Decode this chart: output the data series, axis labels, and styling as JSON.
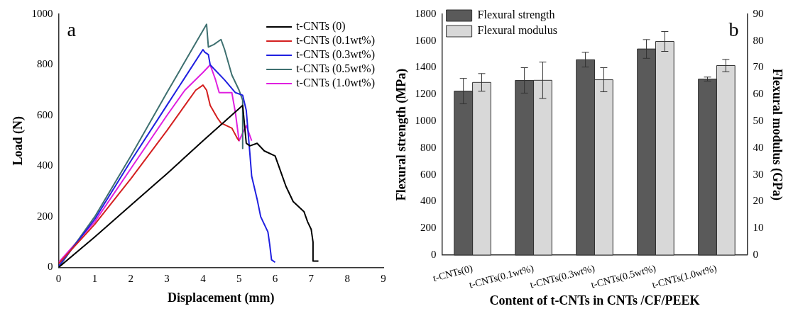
{
  "chart_data": [
    {
      "type": "line",
      "xlabel": "Displacement (mm)",
      "ylabel": "Load (N)",
      "xlim": [
        0,
        9
      ],
      "xticks": [
        0,
        1,
        2,
        3,
        4,
        5,
        6,
        7,
        8,
        9
      ],
      "ylim": [
        0,
        1000
      ],
      "yticks": [
        0,
        200,
        400,
        600,
        800,
        1000
      ],
      "legend": "top right",
      "grid": false,
      "annotations": [
        "a"
      ],
      "series": [
        {
          "name": "t-CNTs (0)",
          "color": "#000000",
          "x": [
            0,
            1,
            2,
            3,
            4,
            5.1,
            5.2,
            5.3,
            5.5,
            5.7,
            6.0,
            6.1,
            6.3,
            6.5,
            6.8,
            6.9,
            7.0,
            7.05,
            7.05,
            7.2
          ],
          "values": [
            0,
            120,
            245,
            370,
            500,
            640,
            490,
            480,
            490,
            460,
            440,
            400,
            320,
            260,
            220,
            180,
            150,
            100,
            25,
            25
          ]
        },
        {
          "name": "t-CNTs (0.1wt%)",
          "color": "#d42020",
          "x": [
            0,
            1,
            2,
            3,
            3.5,
            3.8,
            4.0,
            4.1,
            4.2,
            4.4,
            4.5,
            4.8,
            4.95,
            5.0
          ],
          "values": [
            15,
            170,
            350,
            540,
            640,
            700,
            720,
            700,
            640,
            590,
            570,
            550,
            510,
            500
          ]
        },
        {
          "name": "t-CNTs (0.3wt%)",
          "color": "#2020e0",
          "x": [
            0,
            1,
            2,
            3,
            3.5,
            4.0,
            4.05,
            4.15,
            4.2,
            4.6,
            4.9,
            5.1,
            5.2,
            5.3,
            5.35,
            5.5,
            5.6,
            5.8,
            5.85,
            5.9,
            6.0
          ],
          "values": [
            5,
            190,
            420,
            640,
            750,
            860,
            850,
            840,
            800,
            740,
            690,
            680,
            620,
            450,
            360,
            270,
            200,
            140,
            90,
            30,
            20
          ]
        },
        {
          "name": "t-CNTs (0.5wt%)",
          "color": "#3e7070",
          "x": [
            0,
            1,
            2,
            3,
            4.1,
            4.15,
            4.3,
            4.5,
            4.6,
            4.8,
            5.0,
            5.1,
            5.1
          ],
          "values": [
            0,
            200,
            440,
            690,
            960,
            870,
            880,
            900,
            860,
            760,
            700,
            660,
            470
          ]
        },
        {
          "name": "t-CNTs (1.0wt%)",
          "color": "#e020e0",
          "x": [
            0,
            1,
            2,
            3,
            3.5,
            4.0,
            4.2,
            4.35,
            4.45,
            4.8,
            4.9,
            5.0,
            5.2,
            5.35
          ],
          "values": [
            20,
            180,
            390,
            600,
            700,
            770,
            800,
            740,
            690,
            690,
            610,
            500,
            560,
            500
          ]
        }
      ]
    },
    {
      "type": "bar",
      "xlabel": "Content of t-CNTs in CNTs /CF/PEEK",
      "ylabel": "Flexural strength (MPa)",
      "y2label": "Flexural modulus (GPa)",
      "ylim": [
        0,
        1800
      ],
      "yticks": [
        0,
        200,
        400,
        600,
        800,
        1000,
        1200,
        1400,
        1600,
        1800
      ],
      "y2lim": [
        0,
        90
      ],
      "y2ticks": [
        0,
        10,
        20,
        30,
        40,
        50,
        60,
        70,
        80,
        90
      ],
      "legend": "top left",
      "grid": false,
      "annotations": [
        "b"
      ],
      "categories": [
        "t-CNTs(0)",
        "t-CNTs(0.1wt%)",
        "t-CNTs(0.3wt%)",
        "t-CNTs(0.5wt%)",
        "t-CNTs(1.0wt%)"
      ],
      "series": [
        {
          "name": "Flexural strength",
          "color": "#5a5a5a",
          "values": [
            1225,
            1305,
            1460,
            1540,
            1315
          ],
          "errors": [
            95,
            95,
            55,
            70,
            15
          ]
        },
        {
          "name": "Flexural modulus",
          "color": "#d8d8d8",
          "axis": "y2",
          "values": [
            64.5,
            65.3,
            65.5,
            79.8,
            70.8
          ],
          "errors": [
            3.3,
            6.8,
            4.5,
            3.7,
            2.3
          ]
        }
      ]
    }
  ]
}
